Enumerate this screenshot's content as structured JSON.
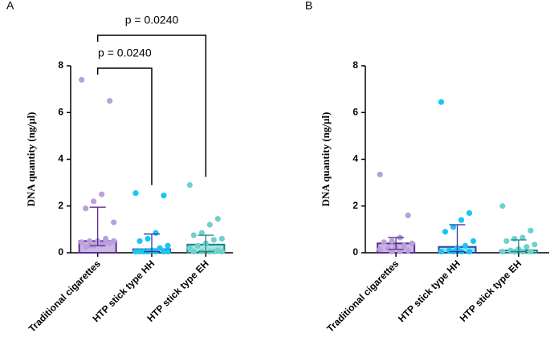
{
  "chart_data": [
    {
      "type": "bar",
      "label": "A",
      "y_label": "DNA quantity (ng/µl)",
      "categories": [
        "Traditional cigarettes",
        "HTP stick type HH",
        "HTP stick type EH"
      ],
      "values": [
        0.5,
        0.15,
        0.35
      ],
      "lower": [
        0.3,
        0.05,
        0.05
      ],
      "upper": [
        1.95,
        0.8,
        0.75
      ],
      "points": [
        [
          7.4,
          6.5,
          2.5,
          2.2,
          1.9,
          1.3,
          0.6,
          0.5,
          0.5,
          0.45,
          0.4,
          0.35,
          0.3,
          0.25,
          0.5,
          0.45,
          0.4,
          0.3
        ],
        [
          2.55,
          2.45,
          0.85,
          0.6,
          0.5,
          0.3,
          0.2,
          0.1,
          0.05,
          0.05,
          0.05,
          0.05,
          0.05,
          0.05,
          0.05
        ],
        [
          2.9,
          1.45,
          1.2,
          0.85,
          0.75,
          0.6,
          0.55,
          0.4,
          0.3,
          0.2,
          0.1,
          0.05,
          0.05,
          0.05,
          0.05,
          0.05
        ]
      ],
      "bar_colors": [
        "#cbb8e4",
        "#8fe3f8",
        "#a6e3e0"
      ],
      "edge_colors": [
        "#5b2d91",
        "#2e3b9e",
        "#1f7f80"
      ],
      "point_colors": [
        "#b9a0dc",
        "#19c6f2",
        "#6fd0cc"
      ],
      "ylim": [
        0,
        8
      ],
      "yticks": [
        0,
        2,
        4,
        6,
        8
      ],
      "annotations": [
        {
          "text": "p = 0.0240",
          "groups": [
            "Traditional cigarettes",
            "HTP stick type HH"
          ]
        },
        {
          "text": "p = 0.0240",
          "groups": [
            "Traditional cigarettes",
            "HTP stick type EH"
          ]
        }
      ]
    },
    {
      "type": "bar",
      "label": "B",
      "y_label": "DNA quantity (ng/µl)",
      "categories": [
        "Traditional cigarettes",
        "HTP stick type HH",
        "HTP stick type EH"
      ],
      "values": [
        0.4,
        0.25,
        0.1
      ],
      "lower": [
        0.15,
        0.05,
        0.05
      ],
      "upper": [
        0.65,
        1.2,
        0.55
      ],
      "points": [
        [
          3.35,
          1.6,
          0.65,
          0.5,
          0.45,
          0.4,
          0.3,
          0.25,
          0.2,
          0.15,
          0.1,
          0.05,
          0.05
        ],
        [
          6.45,
          1.7,
          1.4,
          1.1,
          0.9,
          0.5,
          0.3,
          0.2,
          0.1,
          0.05,
          0.05,
          0.05,
          0.05
        ],
        [
          2.0,
          0.95,
          0.65,
          0.6,
          0.5,
          0.35,
          0.25,
          0.15,
          0.1,
          0.05,
          0.05,
          0.05,
          0.05
        ]
      ],
      "bar_colors": [
        "#cbb8e4",
        "#8fe3f8",
        "#a6e3e0"
      ],
      "edge_colors": [
        "#5b2d91",
        "#2e3b9e",
        "#1f7f80"
      ],
      "point_colors": [
        "#b9a0dc",
        "#19c6f2",
        "#6fd0cc"
      ],
      "ylim": [
        0,
        8
      ],
      "yticks": [
        0,
        2,
        4,
        6,
        8
      ]
    }
  ]
}
